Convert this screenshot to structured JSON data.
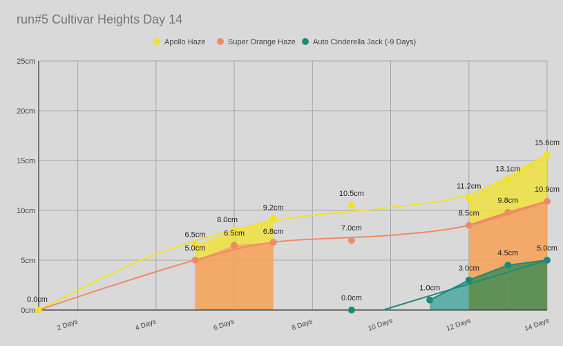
{
  "chart_data": {
    "type": "line",
    "title": "run#5 Cultivar Heights Day 14",
    "xlabel": "",
    "ylabel": "",
    "xlim": [
      1,
      14
    ],
    "ylim": [
      0,
      25
    ],
    "y_ticks": [
      0,
      5,
      10,
      15,
      20,
      25
    ],
    "y_tick_labels": [
      "0cm",
      "5cm",
      "10cm",
      "15cm",
      "20cm",
      "25cm"
    ],
    "x_ticks": [
      2,
      4,
      6,
      8,
      10,
      12,
      14
    ],
    "x_tick_labels": [
      "2 Days",
      "4 Days",
      "6 Days",
      "8 Days",
      "10 Days",
      "12 Days",
      "14 Days"
    ],
    "grid": true,
    "legend_position": "top",
    "series": [
      {
        "name": "Apollo Haze",
        "color": "#f2e12a",
        "points": [
          {
            "x": 1,
            "y": 0.0,
            "label": "0.0cm"
          },
          {
            "x": 5,
            "y": 6.5,
            "label": "6.5cm"
          },
          {
            "x": 6,
            "y": 8.0,
            "label": "8.0cm"
          },
          {
            "x": 7,
            "y": 9.2,
            "label": "9.2cm"
          },
          {
            "x": 9,
            "y": 10.5,
            "label": "10.5cm"
          },
          {
            "x": 12,
            "y": 11.2,
            "label": "11.2cm"
          },
          {
            "x": 13,
            "y": 13.1,
            "label": "13.1cm"
          },
          {
            "x": 14,
            "y": 15.6,
            "label": "15.6cm"
          }
        ]
      },
      {
        "name": "Super Orange Haze",
        "color": "#f08a66",
        "points": [
          {
            "x": 5,
            "y": 5.0,
            "label": "5.0cm"
          },
          {
            "x": 6,
            "y": 6.5,
            "label": "6.5cm"
          },
          {
            "x": 7,
            "y": 6.8,
            "label": "6.8cm"
          },
          {
            "x": 9,
            "y": 7.0,
            "label": "7.0cm"
          },
          {
            "x": 12,
            "y": 8.5,
            "label": "8.5cm"
          },
          {
            "x": 13,
            "y": 9.8,
            "label": "9.8cm"
          },
          {
            "x": 14,
            "y": 10.9,
            "label": "10.9cm"
          }
        ]
      },
      {
        "name": "Auto Cinderella Jack (-9 Days)",
        "color": "#1c8a7a",
        "points": [
          {
            "x": 9,
            "y": 0.0,
            "label": "0.0cm"
          },
          {
            "x": 11,
            "y": 1.0,
            "label": "1.0cm"
          },
          {
            "x": 12,
            "y": 3.0,
            "label": "3.0cm"
          },
          {
            "x": 13,
            "y": 4.5,
            "label": "4.5cm"
          },
          {
            "x": 14,
            "y": 5.0,
            "label": "5.0cm"
          }
        ]
      }
    ]
  }
}
